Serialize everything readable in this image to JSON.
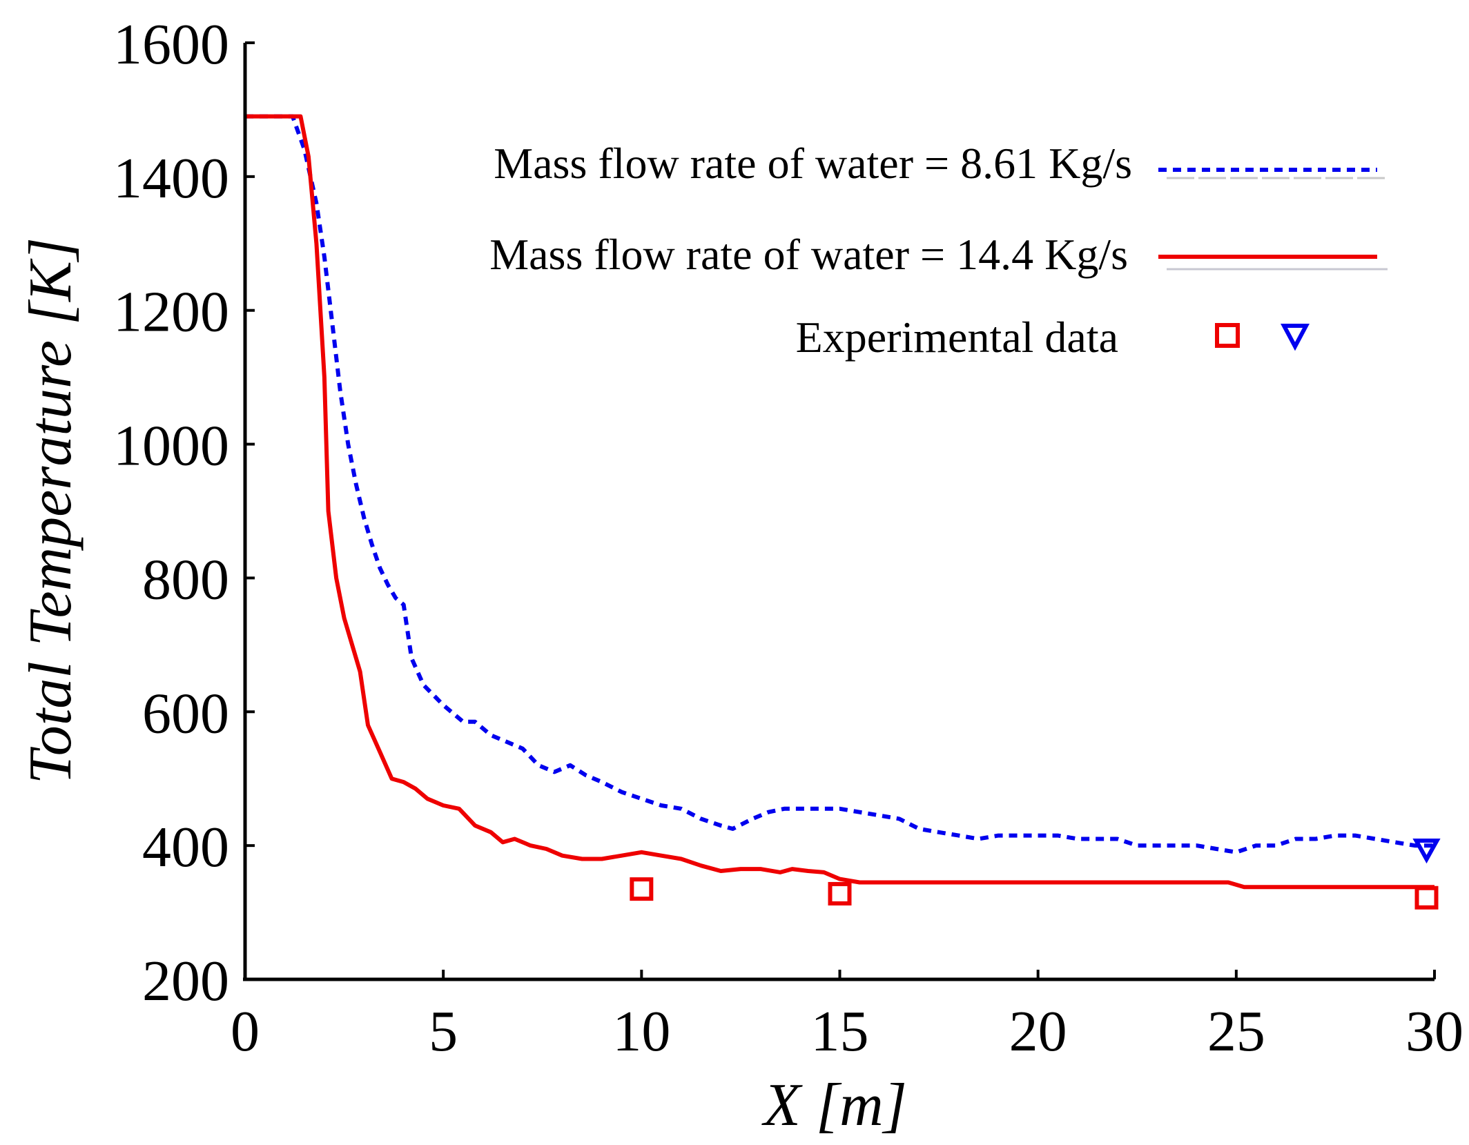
{
  "chart_data": {
    "type": "line",
    "title": "",
    "xlabel": "X [m]",
    "ylabel": "Total Temperature [K]",
    "xlim": [
      0,
      30
    ],
    "ylim": [
      200,
      1600
    ],
    "xticks": [
      0,
      5,
      10,
      15,
      20,
      25,
      30
    ],
    "yticks": [
      200,
      400,
      600,
      800,
      1000,
      1200,
      1400,
      1600
    ],
    "grid": false,
    "legend_position": "top-right",
    "series": [
      {
        "name": "Mass flow rate of water = 8.61 Kg/s",
        "style": "dotted",
        "color": "#0000ee",
        "points": [
          [
            0,
            1490
          ],
          [
            1.2,
            1490
          ],
          [
            1.5,
            1440
          ],
          [
            1.8,
            1360
          ],
          [
            2.0,
            1280
          ],
          [
            2.2,
            1180
          ],
          [
            2.4,
            1080
          ],
          [
            2.6,
            1000
          ],
          [
            2.8,
            940
          ],
          [
            3.0,
            890
          ],
          [
            3.2,
            850
          ],
          [
            3.4,
            815
          ],
          [
            3.6,
            790
          ],
          [
            3.8,
            770
          ],
          [
            4.0,
            760
          ],
          [
            4.2,
            680
          ],
          [
            4.5,
            640
          ],
          [
            5.0,
            610
          ],
          [
            5.5,
            585
          ],
          [
            5.8,
            585
          ],
          [
            6.2,
            565
          ],
          [
            6.6,
            555
          ],
          [
            7.0,
            545
          ],
          [
            7.4,
            520
          ],
          [
            7.8,
            510
          ],
          [
            8.2,
            520
          ],
          [
            8.6,
            505
          ],
          [
            9.0,
            495
          ],
          [
            9.5,
            480
          ],
          [
            10.0,
            470
          ],
          [
            10.5,
            460
          ],
          [
            11.0,
            455
          ],
          [
            11.5,
            440
          ],
          [
            12.0,
            430
          ],
          [
            12.3,
            425
          ],
          [
            12.8,
            440
          ],
          [
            13.2,
            450
          ],
          [
            13.6,
            455
          ],
          [
            14.0,
            455
          ],
          [
            14.5,
            455
          ],
          [
            15.0,
            455
          ],
          [
            15.5,
            450
          ],
          [
            16.0,
            445
          ],
          [
            16.5,
            440
          ],
          [
            17.0,
            425
          ],
          [
            17.5,
            420
          ],
          [
            18.0,
            415
          ],
          [
            18.5,
            410
          ],
          [
            19.0,
            415
          ],
          [
            20.0,
            415
          ],
          [
            20.5,
            415
          ],
          [
            21.0,
            410
          ],
          [
            22.0,
            410
          ],
          [
            22.5,
            400
          ],
          [
            23.5,
            400
          ],
          [
            24.0,
            400
          ],
          [
            24.5,
            395
          ],
          [
            25.0,
            390
          ],
          [
            25.5,
            400
          ],
          [
            26.0,
            400
          ],
          [
            26.5,
            410
          ],
          [
            27.0,
            410
          ],
          [
            27.5,
            415
          ],
          [
            28.0,
            415
          ],
          [
            28.5,
            410
          ],
          [
            29.0,
            405
          ],
          [
            29.5,
            400
          ],
          [
            30.0,
            400
          ]
        ]
      },
      {
        "name": "Mass flow rate of water = 14.4 Kg/s",
        "style": "solid",
        "color": "#ee0000",
        "points": [
          [
            0,
            1490
          ],
          [
            1.4,
            1490
          ],
          [
            1.6,
            1430
          ],
          [
            1.8,
            1300
          ],
          [
            2.0,
            1100
          ],
          [
            2.1,
            900
          ],
          [
            2.3,
            800
          ],
          [
            2.5,
            740
          ],
          [
            2.7,
            700
          ],
          [
            2.9,
            660
          ],
          [
            3.1,
            580
          ],
          [
            3.4,
            540
          ],
          [
            3.7,
            500
          ],
          [
            4.0,
            495
          ],
          [
            4.3,
            485
          ],
          [
            4.6,
            470
          ],
          [
            5.0,
            460
          ],
          [
            5.4,
            455
          ],
          [
            5.8,
            430
          ],
          [
            6.2,
            420
          ],
          [
            6.5,
            405
          ],
          [
            6.8,
            410
          ],
          [
            7.2,
            400
          ],
          [
            7.6,
            395
          ],
          [
            8.0,
            385
          ],
          [
            8.5,
            380
          ],
          [
            9.0,
            380
          ],
          [
            9.5,
            385
          ],
          [
            10.0,
            390
          ],
          [
            10.5,
            385
          ],
          [
            11.0,
            380
          ],
          [
            11.5,
            370
          ],
          [
            12.0,
            362
          ],
          [
            12.5,
            365
          ],
          [
            13.0,
            365
          ],
          [
            13.5,
            360
          ],
          [
            13.8,
            365
          ],
          [
            14.2,
            362
          ],
          [
            14.6,
            360
          ],
          [
            15.0,
            350
          ],
          [
            15.5,
            345
          ],
          [
            20.0,
            345
          ],
          [
            24.8,
            345
          ],
          [
            25.2,
            338
          ],
          [
            30.0,
            338
          ]
        ]
      }
    ],
    "experimental_data": [
      {
        "name": "Experimental data (14.4 Kg/s)",
        "marker": "square",
        "color": "#ee0000",
        "points": [
          [
            10.0,
            335
          ],
          [
            15.0,
            328
          ],
          [
            29.8,
            322
          ]
        ]
      },
      {
        "name": "Experimental data (8.61 Kg/s)",
        "marker": "triangle-down",
        "color": "#0000ee",
        "points": [
          [
            29.8,
            395
          ]
        ]
      }
    ],
    "legend": {
      "series_1": "Mass flow rate of water = 8.61 Kg/s",
      "series_2": "Mass flow rate of water = 14.4 Kg/s",
      "experimental": "Experimental data"
    }
  }
}
